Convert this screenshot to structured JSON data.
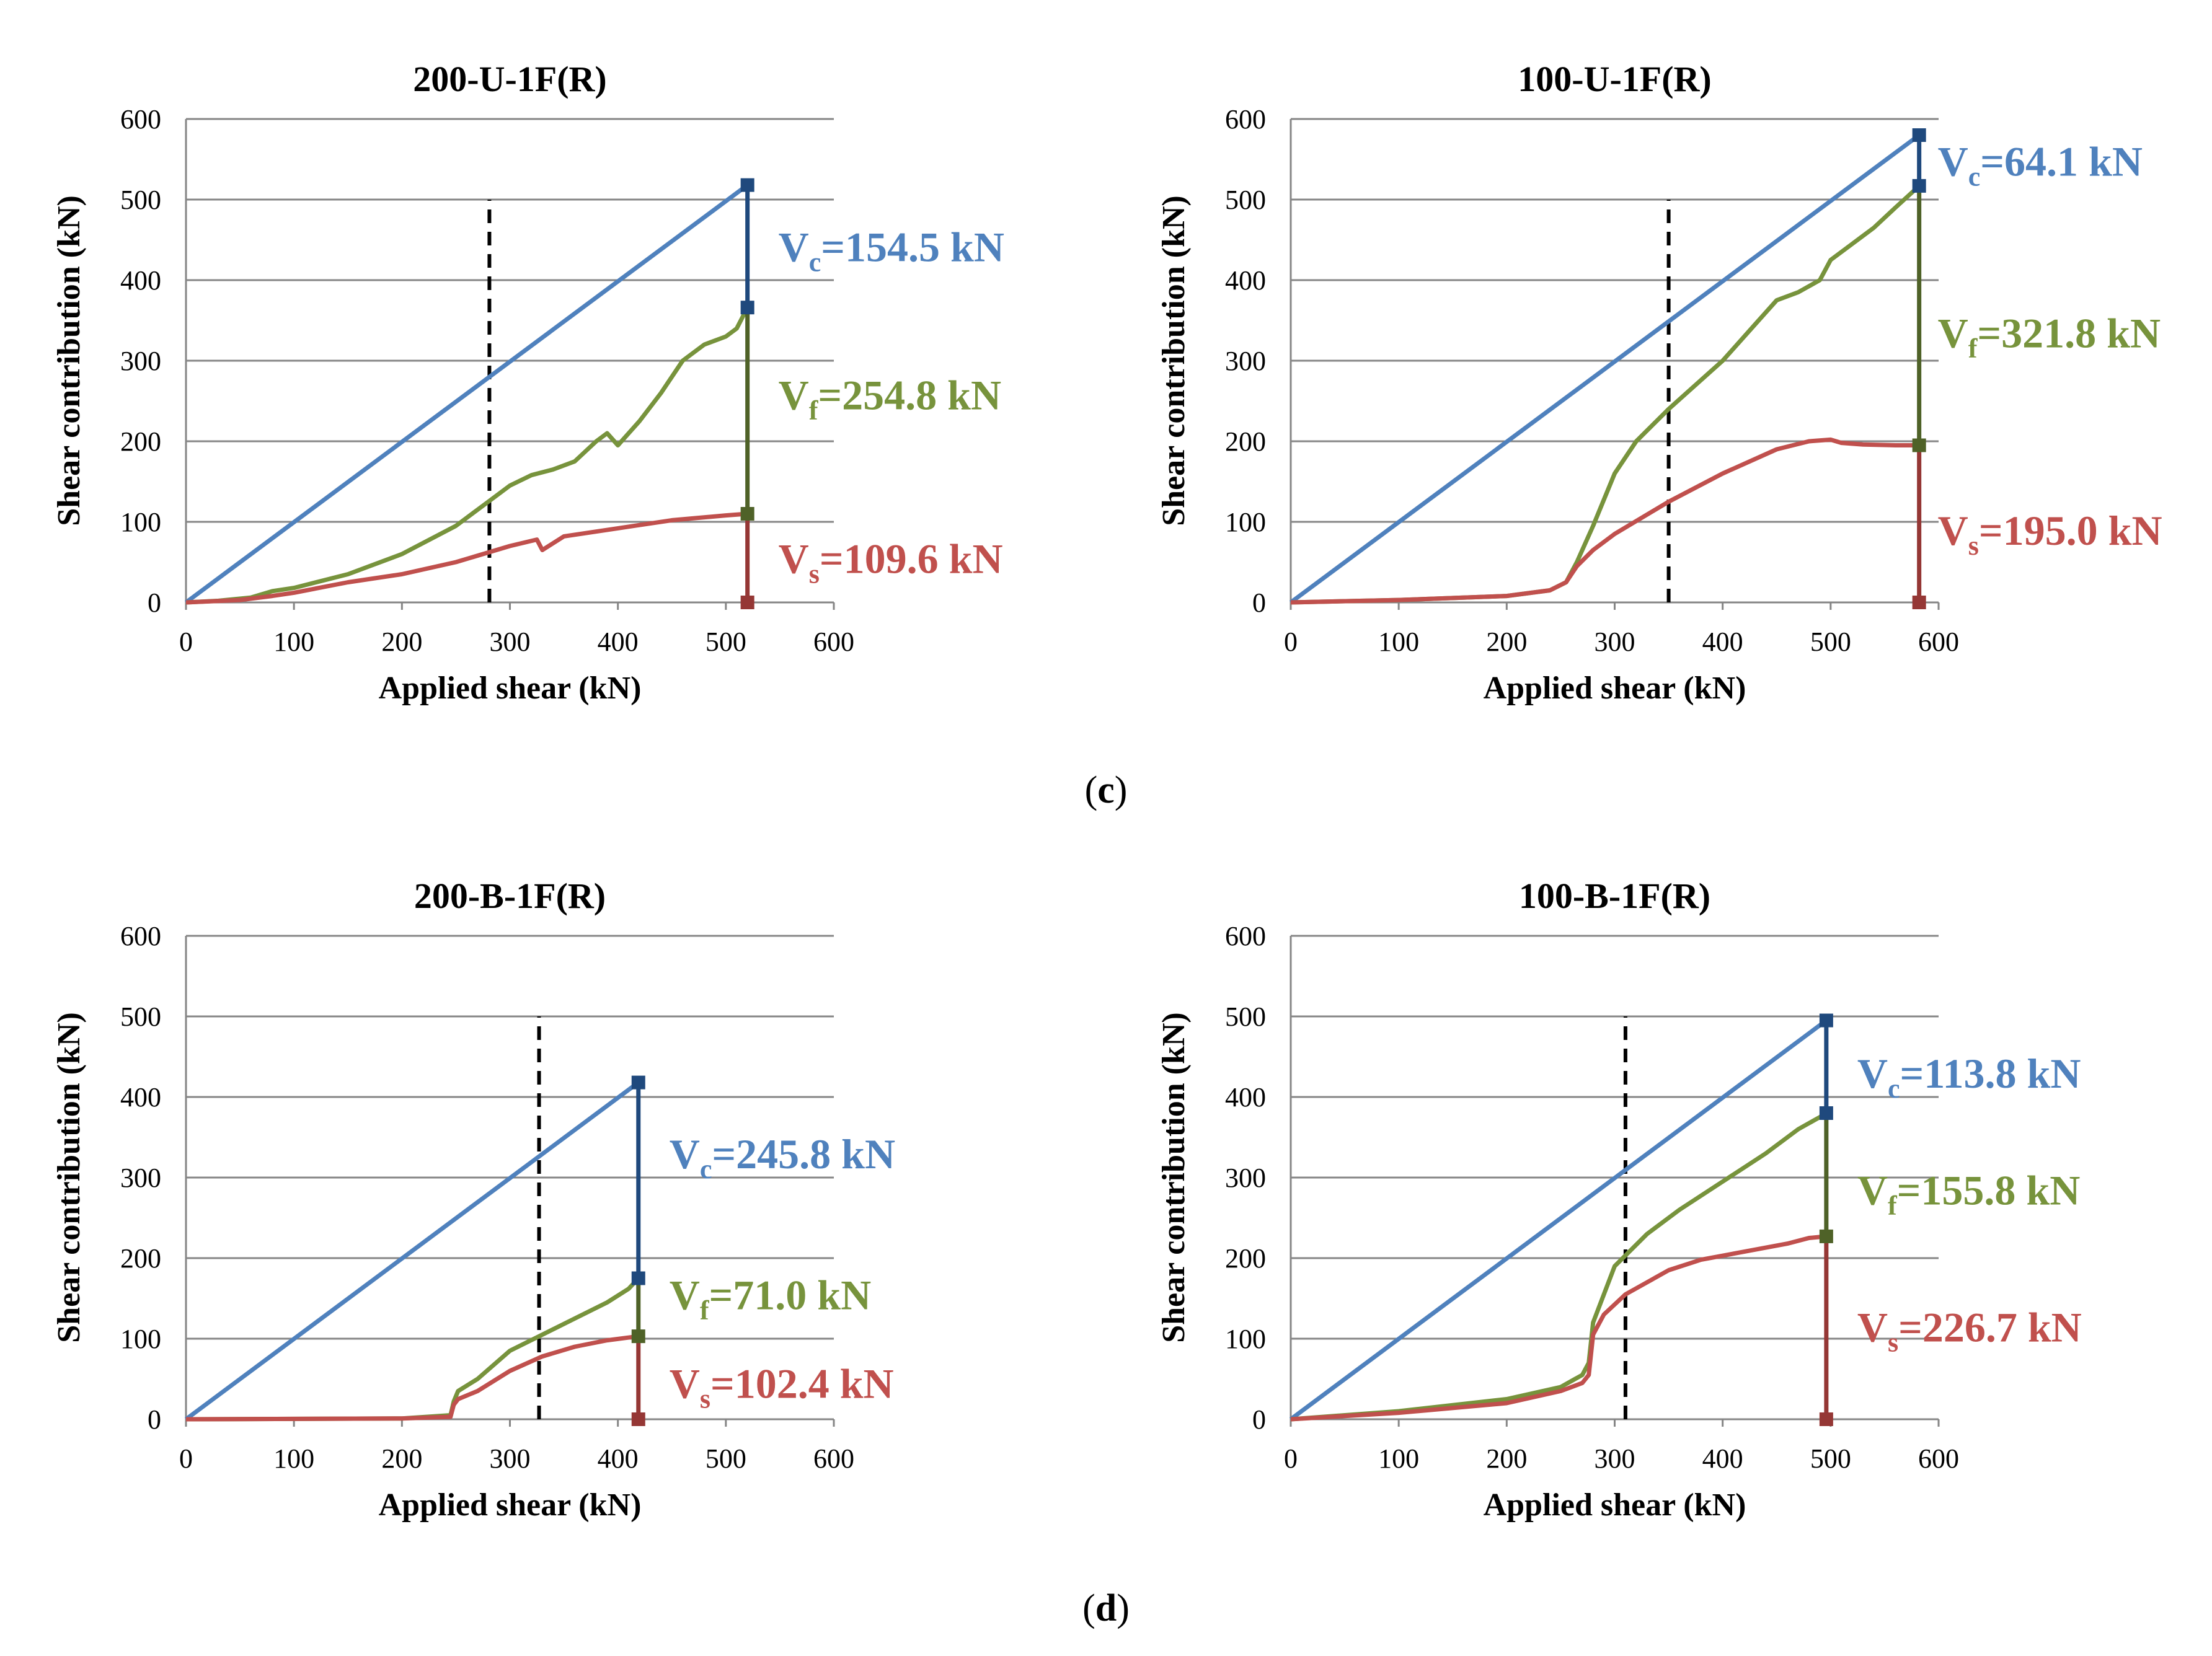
{
  "figure": {
    "panel_labels": [
      {
        "open": "(",
        "letter": "c",
        "close": ")"
      },
      {
        "open": "(",
        "letter": "d",
        "close": ")"
      }
    ],
    "colors": {
      "Vc": "#4F81BD",
      "Vf": "#77933C",
      "Vs": "#C0504D",
      "Vc_marker": "#1F497D",
      "Vf_marker": "#4F6228",
      "Vs_marker": "#953735",
      "grid": "#868686",
      "dashed": "#000000"
    }
  },
  "chart_data": [
    {
      "type": "line",
      "title": "200-U-1F(R)",
      "xlabel": "Applied shear (kN)",
      "ylabel": "Shear contribution (kN)",
      "xlim": [
        0,
        600
      ],
      "ylim": [
        0,
        600
      ],
      "xticks": [
        0,
        100,
        200,
        300,
        400,
        500,
        600
      ],
      "yticks": [
        0,
        100,
        200,
        300,
        400,
        500,
        600
      ],
      "grid": "horizontal",
      "dashed_line_x": 281,
      "series": [
        {
          "key": "total",
          "color": "#4F81BD",
          "x": [
            0,
            520
          ],
          "y": [
            0,
            518
          ]
        },
        {
          "key": "frp",
          "color": "#77933C",
          "x": [
            0,
            30,
            60,
            80,
            100,
            150,
            200,
            250,
            280,
            300,
            320,
            340,
            360,
            380,
            390,
            400,
            420,
            440,
            460,
            480,
            500,
            510,
            520
          ],
          "y": [
            0,
            2,
            6,
            14,
            18,
            35,
            60,
            95,
            125,
            145,
            158,
            165,
            175,
            200,
            210,
            195,
            225,
            260,
            300,
            320,
            330,
            340,
            366
          ]
        },
        {
          "key": "steel",
          "color": "#C0504D",
          "x": [
            0,
            50,
            80,
            100,
            150,
            200,
            250,
            300,
            325,
            330,
            350,
            400,
            450,
            500,
            520
          ],
          "y": [
            0,
            3,
            8,
            12,
            25,
            35,
            50,
            70,
            78,
            65,
            82,
            92,
            102,
            108,
            110
          ]
        }
      ],
      "failure_x": 520,
      "failure_points": {
        "Vc": 518,
        "Vf": 366,
        "Vs": 110,
        "base": 0
      },
      "annotations": [
        {
          "label": "V",
          "sub": "c",
          "value": "=154.5 kN",
          "color": "#4F81BD"
        },
        {
          "label": "V",
          "sub": "f",
          "value": "=254.8 kN",
          "color": "#77933C"
        },
        {
          "label": "V",
          "sub": "s",
          "value": "=109.6 kN",
          "color": "#C0504D"
        }
      ]
    },
    {
      "type": "line",
      "title": "100-U-1F(R)",
      "xlabel": "Applied shear (kN)",
      "ylabel": "Shear contribution (kN)",
      "xlim": [
        0,
        600
      ],
      "ylim": [
        0,
        600
      ],
      "xticks": [
        0,
        100,
        200,
        300,
        400,
        500,
        600
      ],
      "yticks": [
        0,
        100,
        200,
        300,
        400,
        500,
        600
      ],
      "grid": "horizontal",
      "dashed_line_x": 350,
      "series": [
        {
          "key": "total",
          "color": "#4F81BD",
          "x": [
            0,
            582
          ],
          "y": [
            0,
            580
          ]
        },
        {
          "key": "frp",
          "color": "#77933C",
          "x": [
            0,
            100,
            200,
            240,
            255,
            265,
            280,
            300,
            320,
            350,
            400,
            430,
            450,
            470,
            490,
            500,
            520,
            540,
            560,
            582
          ],
          "y": [
            0,
            3,
            8,
            15,
            25,
            50,
            95,
            160,
            200,
            240,
            300,
            345,
            375,
            385,
            400,
            425,
            445,
            465,
            490,
            517
          ]
        },
        {
          "key": "steel",
          "color": "#C0504D",
          "x": [
            0,
            100,
            200,
            240,
            255,
            265,
            280,
            300,
            350,
            400,
            450,
            480,
            500,
            510,
            530,
            560,
            582
          ],
          "y": [
            0,
            3,
            8,
            15,
            25,
            45,
            65,
            85,
            125,
            160,
            190,
            200,
            202,
            198,
            196,
            195,
            195
          ]
        }
      ],
      "failure_x": 582,
      "failure_points": {
        "Vc": 580,
        "Vf": 517,
        "Vs": 195,
        "base": 0
      },
      "annotations": [
        {
          "label": "V",
          "sub": "c",
          "value": "=64.1 kN",
          "color": "#4F81BD"
        },
        {
          "label": "V",
          "sub": "f",
          "value": "=321.8 kN",
          "color": "#77933C"
        },
        {
          "label": "V",
          "sub": "s",
          "value": "=195.0 kN",
          "color": "#C0504D"
        }
      ]
    },
    {
      "type": "line",
      "title": "200-B-1F(R)",
      "xlabel": "Applied shear (kN)",
      "ylabel": "Shear contribution (kN)",
      "xlim": [
        0,
        600
      ],
      "ylim": [
        0,
        600
      ],
      "xticks": [
        0,
        100,
        200,
        300,
        400,
        500,
        600
      ],
      "yticks": [
        0,
        100,
        200,
        300,
        400,
        500,
        600
      ],
      "grid": "horizontal",
      "dashed_line_x": 327,
      "series": [
        {
          "key": "total",
          "color": "#4F81BD",
          "x": [
            0,
            419
          ],
          "y": [
            0,
            418
          ]
        },
        {
          "key": "frp",
          "color": "#77933C",
          "x": [
            0,
            200,
            245,
            248,
            252,
            270,
            300,
            330,
            360,
            390,
            410,
            419
          ],
          "y": [
            0,
            1,
            5,
            22,
            35,
            50,
            85,
            105,
            125,
            145,
            162,
            175
          ]
        },
        {
          "key": "steel",
          "color": "#C0504D",
          "x": [
            0,
            200,
            245,
            248,
            252,
            270,
            300,
            330,
            360,
            390,
            419
          ],
          "y": [
            0,
            1,
            3,
            18,
            25,
            35,
            60,
            78,
            90,
            98,
            103
          ]
        }
      ],
      "failure_x": 419,
      "failure_points": {
        "Vc": 418,
        "Vf": 175,
        "Vs": 103,
        "base": 0
      },
      "annotations": [
        {
          "label": "V",
          "sub": "c",
          "value": "=245.8 kN",
          "color": "#4F81BD"
        },
        {
          "label": "V",
          "sub": "f",
          "value": "=71.0 kN",
          "color": "#77933C"
        },
        {
          "label": "V",
          "sub": "s",
          "value": "=102.4 kN",
          "color": "#C0504D"
        }
      ]
    },
    {
      "type": "line",
      "title": "100-B-1F(R)",
      "xlabel": "Applied shear (kN)",
      "ylabel": "Shear contribution (kN)",
      "xlim": [
        0,
        600
      ],
      "ylim": [
        0,
        600
      ],
      "xticks": [
        0,
        100,
        200,
        300,
        400,
        500,
        600
      ],
      "yticks": [
        0,
        100,
        200,
        300,
        400,
        500,
        600
      ],
      "grid": "horizontal",
      "dashed_line_x": 310,
      "series": [
        {
          "key": "total",
          "color": "#4F81BD",
          "x": [
            0,
            496
          ],
          "y": [
            0,
            495
          ]
        },
        {
          "key": "frp",
          "color": "#77933C",
          "x": [
            0,
            100,
            200,
            250,
            270,
            276,
            280,
            290,
            300,
            330,
            360,
            400,
            440,
            470,
            490,
            496
          ],
          "y": [
            0,
            10,
            25,
            40,
            55,
            70,
            120,
            155,
            190,
            230,
            260,
            295,
            330,
            360,
            375,
            380
          ]
        },
        {
          "key": "steel",
          "color": "#C0504D",
          "x": [
            0,
            100,
            200,
            250,
            270,
            276,
            280,
            290,
            310,
            330,
            350,
            380,
            420,
            460,
            480,
            496
          ],
          "y": [
            0,
            8,
            20,
            35,
            45,
            55,
            105,
            130,
            155,
            170,
            185,
            198,
            208,
            218,
            225,
            227
          ]
        }
      ],
      "failure_x": 496,
      "failure_points": {
        "Vc": 495,
        "Vf": 380,
        "Vs": 227,
        "base": 0
      },
      "annotations": [
        {
          "label": "V",
          "sub": "c",
          "value": "=113.8 kN",
          "color": "#4F81BD"
        },
        {
          "label": "V",
          "sub": "f",
          "value": "=155.8 kN",
          "color": "#77933C"
        },
        {
          "label": "V",
          "sub": "s",
          "value": "=226.7 kN",
          "color": "#C0504D"
        }
      ]
    }
  ]
}
